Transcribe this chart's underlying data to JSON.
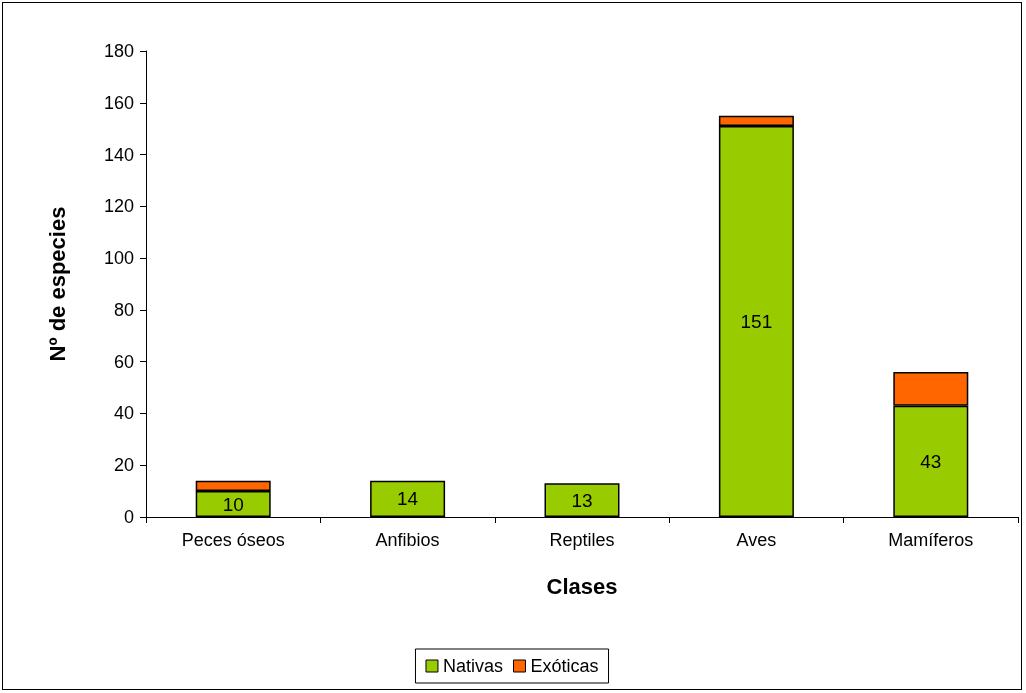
{
  "chart_data": {
    "type": "bar",
    "xlabel": "Clases",
    "ylabel": "Nº de especies",
    "categories": [
      "Peces óseos",
      "Anfibios",
      "Reptiles",
      "Aves",
      "Mamíferos"
    ],
    "stacked": true,
    "series": [
      {
        "name": "Nativas",
        "color": "#99cc00",
        "values": [
          10,
          14,
          13,
          151,
          43
        ],
        "value_labels": [
          "10",
          "14",
          "13",
          "151",
          "43"
        ]
      },
      {
        "name": "Exóticas",
        "color": "#ff6600",
        "values": [
          4,
          null,
          null,
          4,
          13
        ]
      }
    ],
    "ylim": [
      0,
      180
    ],
    "yticks": [
      0,
      20,
      40,
      60,
      80,
      100,
      120,
      140,
      160,
      180
    ],
    "grid": false,
    "legend": "bottom"
  }
}
